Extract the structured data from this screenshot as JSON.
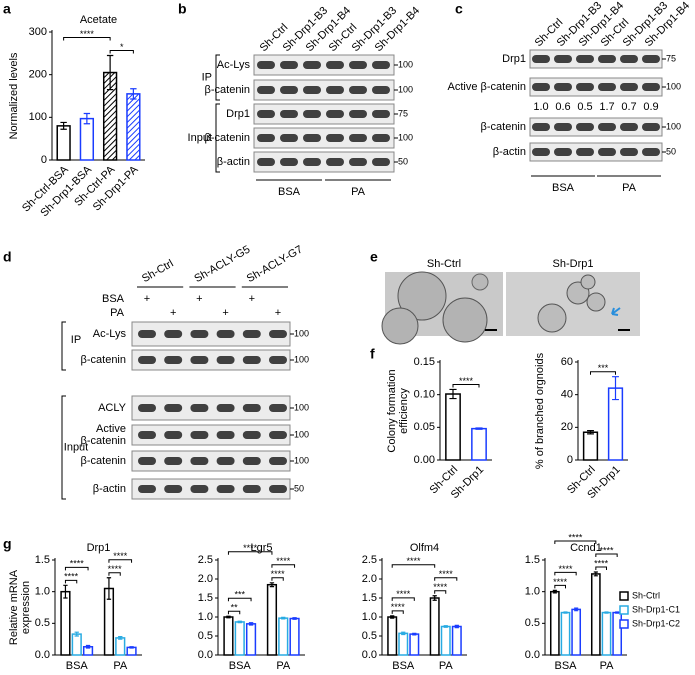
{
  "panel_letters": [
    "a",
    "b",
    "c",
    "d",
    "e",
    "f",
    "g"
  ],
  "chart_data": [
    {
      "type": "bar",
      "title": "Acetate",
      "y_label": [
        "Normalized levels"
      ],
      "categories": [
        "Sh-Ctrl-BSA",
        "Sh-Drp1-BSA",
        "Sh-Ctrl-PA",
        "Sh-Drp1-PA"
      ],
      "values": [
        80,
        97,
        205,
        155
      ],
      "errors": [
        8,
        12,
        40,
        12
      ],
      "colors": [
        "#000000",
        "#1a3cff",
        "#000000",
        "#1a3cff"
      ],
      "hatched": [
        false,
        false,
        true,
        true
      ],
      "ylim": [
        0,
        300
      ],
      "yticks": [
        0,
        100,
        200,
        300
      ],
      "annotations": [
        {
          "text": "****",
          "between": [
            0,
            2
          ]
        },
        {
          "text": "*",
          "between": [
            2,
            3
          ]
        }
      ]
    },
    {
      "type": "bar",
      "y_label": [
        "Colony formation",
        "efficiency"
      ],
      "categories": [
        "Sh-Ctrl",
        "Sh-Drp1"
      ],
      "values": [
        0.101,
        0.048
      ],
      "errors": [
        0.007,
        0.001
      ],
      "colors": [
        "#000000",
        "#1a3cff"
      ],
      "ylim": [
        0,
        0.15
      ],
      "yticks": [
        {
          "value": 0,
          "label": "0.00"
        },
        0.05,
        {
          "value": 0.1,
          "label": "0.10"
        },
        0.15
      ],
      "annotations": [
        {
          "text": "****",
          "between": [
            0,
            1
          ]
        }
      ]
    },
    {
      "type": "bar",
      "y_label": [
        "% of branched orgnoids"
      ],
      "categories": [
        "Sh-Ctrl",
        "Sh-Drp1"
      ],
      "values": [
        17,
        44
      ],
      "errors": [
        1,
        7
      ],
      "colors": [
        "#000000",
        "#1a3cff"
      ],
      "ylim": [
        0,
        60
      ],
      "yticks": [
        0,
        20,
        40,
        60
      ],
      "annotations": [
        {
          "text": "***",
          "between": [
            0,
            1
          ]
        }
      ]
    },
    {
      "type": "grouped_bar",
      "title": "Drp1",
      "y_label": [
        "Relative mRNA",
        "expression"
      ],
      "categories": [
        "BSA",
        "PA"
      ],
      "series": [
        {
          "name": "Sh-Ctrl",
          "color": "#000000",
          "values": [
            1.0,
            1.05
          ],
          "errors": [
            0.1,
            0.17
          ]
        },
        {
          "name": "Sh-Drp1-C1",
          "color": "#29abe2",
          "values": [
            0.33,
            0.27
          ],
          "errors": [
            0.03,
            0.02
          ]
        },
        {
          "name": "Sh-Drp1-C2",
          "color": "#1a3cff",
          "values": [
            0.13,
            0.12
          ],
          "errors": [
            0.02,
            0.01
          ]
        }
      ],
      "ylim": [
        0,
        1.5
      ],
      "yticks": [
        {
          "value": 0,
          "label": "0.0"
        },
        0.5,
        {
          "value": 1,
          "label": "1.0"
        },
        1.5
      ],
      "annotations": [
        {
          "text": "****",
          "between": [
            0,
            1
          ]
        },
        {
          "text": "****",
          "between": [
            0,
            2
          ]
        },
        {
          "text": "****",
          "between": [
            3,
            4
          ]
        },
        {
          "text": "****",
          "between": [
            3,
            5
          ]
        }
      ]
    },
    {
      "type": "grouped_bar",
      "title": "Lgr5",
      "categories": [
        "BSA",
        "PA"
      ],
      "series": [
        {
          "name": "Sh-Ctrl",
          "color": "#000000",
          "values": [
            1.0,
            1.85
          ],
          "errors": [
            0.02,
            0.05
          ]
        },
        {
          "name": "Sh-Drp1-C1",
          "color": "#29abe2",
          "values": [
            0.87,
            0.97
          ],
          "errors": [
            0.02,
            0.02
          ]
        },
        {
          "name": "Sh-Drp1-C2",
          "color": "#1a3cff",
          "values": [
            0.82,
            0.96
          ],
          "errors": [
            0.03,
            0.02
          ]
        }
      ],
      "ylim": [
        0,
        2.5
      ],
      "yticks": [
        {
          "value": 0,
          "label": "0.0"
        },
        0.5,
        {
          "value": 1,
          "label": "1.0"
        },
        1.5,
        {
          "value": 2,
          "label": "2.0"
        },
        2.5
      ],
      "annotations": [
        {
          "text": "**",
          "between": [
            0,
            1
          ]
        },
        {
          "text": "***",
          "between": [
            0,
            2
          ]
        },
        {
          "text": "****",
          "between": [
            0,
            3
          ]
        },
        {
          "text": "****",
          "between": [
            3,
            4
          ]
        },
        {
          "text": "****",
          "between": [
            3,
            5
          ]
        }
      ]
    },
    {
      "type": "grouped_bar",
      "title": "Olfm4",
      "categories": [
        "BSA",
        "PA"
      ],
      "series": [
        {
          "name": "Sh-Ctrl",
          "color": "#000000",
          "values": [
            1.0,
            1.5
          ],
          "errors": [
            0.03,
            0.06
          ]
        },
        {
          "name": "Sh-Drp1-C1",
          "color": "#29abe2",
          "values": [
            0.57,
            0.75
          ],
          "errors": [
            0.03,
            0.02
          ]
        },
        {
          "name": "Sh-Drp1-C2",
          "color": "#1a3cff",
          "values": [
            0.55,
            0.75
          ],
          "errors": [
            0.02,
            0.03
          ]
        }
      ],
      "ylim": [
        0,
        2.5
      ],
      "yticks": [
        {
          "value": 0,
          "label": "0.0"
        },
        0.5,
        {
          "value": 1,
          "label": "1.0"
        },
        1.5,
        {
          "value": 2,
          "label": "2.0"
        },
        2.5
      ],
      "annotations": [
        {
          "text": "****",
          "between": [
            0,
            1
          ]
        },
        {
          "text": "****",
          "between": [
            0,
            2
          ]
        },
        {
          "text": "****",
          "between": [
            0,
            3
          ]
        },
        {
          "text": "****",
          "between": [
            3,
            4
          ]
        },
        {
          "text": "****",
          "between": [
            3,
            5
          ]
        }
      ]
    },
    {
      "type": "grouped_bar",
      "title": "Ccnd1",
      "categories": [
        "BSA",
        "PA"
      ],
      "series": [
        {
          "name": "Sh-Ctrl",
          "color": "#000000",
          "values": [
            1.0,
            1.28
          ],
          "errors": [
            0.02,
            0.03
          ]
        },
        {
          "name": "Sh-Drp1-C1",
          "color": "#29abe2",
          "values": [
            0.67,
            0.67
          ],
          "errors": [
            0.01,
            0.01
          ]
        },
        {
          "name": "Sh-Drp1-C2",
          "color": "#1a3cff",
          "values": [
            0.72,
            0.67
          ],
          "errors": [
            0.02,
            0.01
          ]
        }
      ],
      "ylim": [
        0,
        1.5
      ],
      "yticks": [
        {
          "value": 0,
          "label": "0.0"
        },
        0.5,
        {
          "value": 1,
          "label": "1.0"
        },
        1.5
      ],
      "legend": "right",
      "annotations": [
        {
          "text": "****",
          "between": [
            0,
            1
          ]
        },
        {
          "text": "****",
          "between": [
            0,
            2
          ]
        },
        {
          "text": "****",
          "between": [
            0,
            3
          ]
        },
        {
          "text": "****",
          "between": [
            3,
            4
          ]
        },
        {
          "text": "****",
          "between": [
            3,
            5
          ]
        }
      ]
    }
  ],
  "blot_b": {
    "lanes": [
      "Sh-Ctrl",
      "Sh-Drp1-B3",
      "Sh-Drp1-B4",
      "Sh-Ctrl",
      "Sh-Drp1-B3",
      "Sh-Drp1-B4"
    ],
    "sections": [
      {
        "label": "IP",
        "rows": [
          {
            "label": "Ac-Lys",
            "mw": 100
          },
          {
            "label": "β-catenin",
            "mw": 100
          }
        ]
      },
      {
        "label": "Input",
        "rows": [
          {
            "label": "Drp1",
            "mw": 75
          },
          {
            "label": "β-catenin",
            "mw": 100
          },
          {
            "label": "β-actin",
            "mw": 50
          }
        ]
      }
    ],
    "groups": [
      "BSA",
      "PA"
    ]
  },
  "blot_c": {
    "lanes": [
      "Sh-Ctrl",
      "Sh-Drp1-B3",
      "Sh-Drp1-B4",
      "Sh-Ctrl",
      "Sh-Drp1-B3",
      "Sh-Drp1-B4"
    ],
    "rows": [
      {
        "label": "Drp1",
        "mw": 75
      },
      {
        "label": "Active β-catenin",
        "mw": 100,
        "quantification": [
          "1.0",
          "0.6",
          "0.5",
          "1.7",
          "0.7",
          "0.9"
        ]
      },
      {
        "label": "β-catenin",
        "mw": 100
      },
      {
        "label": "β-actin",
        "mw": 50
      }
    ],
    "groups": [
      "BSA",
      "PA"
    ]
  },
  "blot_d": {
    "groups": [
      "Sh-Ctrl",
      "Sh-ACLY-G5",
      "Sh-ACLY-G7"
    ],
    "treatments": [
      {
        "label": "BSA",
        "mark": "+",
        "lanes": [
          0,
          2,
          4
        ]
      },
      {
        "label": "PA",
        "mark": "+",
        "lanes": [
          1,
          3,
          5
        ]
      }
    ],
    "sections": [
      {
        "label": "IP",
        "rows": [
          {
            "label": "Ac-Lys",
            "mw": 100
          },
          {
            "label": "β-catenin",
            "mw": 100
          }
        ]
      },
      {
        "label": "Input",
        "rows": [
          {
            "label": "ACLY",
            "mw": 100
          },
          {
            "label": [
              "Active",
              "β-catenin"
            ],
            "mw": 100
          },
          {
            "label": "β-catenin",
            "mw": 100
          },
          {
            "label": "β-actin",
            "mw": 50
          }
        ]
      }
    ]
  },
  "images_e": {
    "labels": [
      "Sh-Ctrl",
      "Sh-Drp1"
    ]
  }
}
